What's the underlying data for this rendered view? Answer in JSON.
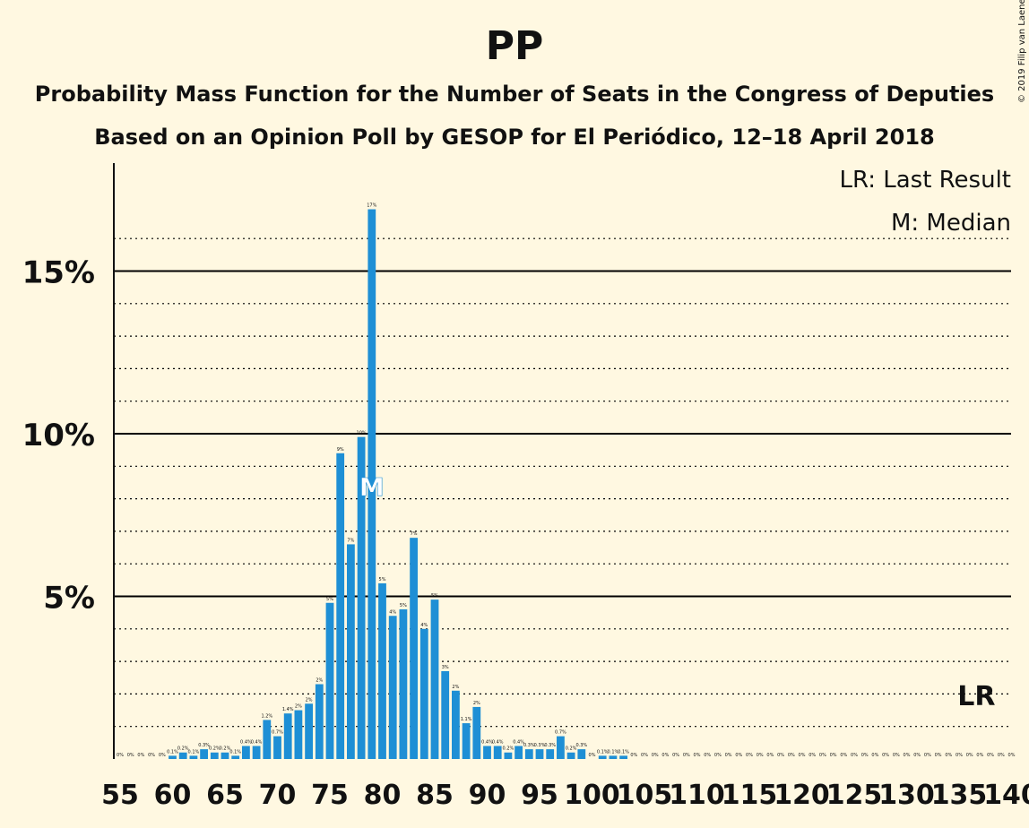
{
  "chart_data": {
    "type": "bar",
    "title": "PP",
    "subtitle": "Probability Mass Function for the Number of Seats in the Congress of Deputies",
    "subtitle2": "Based on an Opinion Poll by GESOP for El Periódico, 12–18 April 2018",
    "copyright": "© 2019 Filip van Laenen",
    "legend": [
      "LR: Last Result",
      "M: Median"
    ],
    "y_tick_labels": [
      "5%",
      "10%",
      "15%"
    ],
    "y_ticks": [
      5,
      10,
      15
    ],
    "ylim": [
      0,
      18
    ],
    "x_start": 55,
    "x_end": 140,
    "x_tick_labels": [
      "55",
      "60",
      "65",
      "70",
      "75",
      "80",
      "85",
      "90",
      "95",
      "100",
      "105",
      "110",
      "115",
      "120",
      "125",
      "130",
      "135",
      "140"
    ],
    "median_seat": 79,
    "last_result_seat": 137,
    "median_marker": "M",
    "last_result_marker": "LR",
    "bar_color": "#1E8FD5",
    "grid_color": "#000000",
    "values": [
      0.0,
      0.0,
      0.0,
      0.0,
      0.0,
      0.1,
      0.2,
      0.1,
      0.3,
      0.2,
      0.2,
      0.1,
      0.4,
      0.4,
      1.2,
      0.7,
      1.4,
      1.5,
      1.7,
      2.3,
      4.8,
      9.4,
      6.6,
      9.9,
      16.9,
      5.4,
      4.4,
      4.6,
      6.8,
      4.0,
      4.9,
      2.7,
      2.1,
      1.1,
      1.6,
      0.4,
      0.4,
      0.2,
      0.4,
      0.3,
      0.3,
      0.3,
      0.7,
      0.2,
      0.3,
      0.0,
      0.1,
      0.1,
      0.1,
      0.0,
      0.0,
      0.0,
      0.0,
      0.0,
      0.0,
      0.0,
      0.0,
      0.0,
      0.0,
      0.0,
      0.0,
      0.0,
      0.0,
      0.0,
      0.0,
      0.0,
      0.0,
      0.0,
      0.0,
      0.0,
      0.0,
      0.0,
      0.0,
      0.0,
      0.0,
      0.0,
      0.0,
      0.0,
      0.0,
      0.0,
      0.0,
      0.0,
      0.0,
      0.0,
      0.0,
      0.0
    ],
    "value_labels": [
      "0%",
      "0%",
      "0%",
      "0%",
      "0%",
      "0.1%",
      "0.2%",
      "0.1%",
      "0.3%",
      "0.2%",
      "0.2%",
      "0.1%",
      "0.4%",
      "0.4%",
      "1.2%",
      "0.7%",
      "1.4%",
      "2%",
      "2%",
      "2%",
      "5%",
      "9%",
      "7%",
      "10%",
      "17%",
      "5%",
      "4%",
      "5%",
      "7%",
      "4%",
      "5%",
      "3%",
      "2%",
      "1.1%",
      "2%",
      "0.4%",
      "0.4%",
      "0.2%",
      "0.4%",
      "0.3%",
      "0.3%",
      "0.3%",
      "0.7%",
      "0.2%",
      "0.3%",
      "0%",
      "0.1%",
      "0.1%",
      "0.1%",
      "0%",
      "0%",
      "0%",
      "0%",
      "0%",
      "0%",
      "0%",
      "0%",
      "0%",
      "0%",
      "0%",
      "0%",
      "0%",
      "0%",
      "0%",
      "0%",
      "0%",
      "0%",
      "0%",
      "0%",
      "0%",
      "0%",
      "0%",
      "0%",
      "0%",
      "0%",
      "0%",
      "0%",
      "0%",
      "0%",
      "0%",
      "0%",
      "0%",
      "0%",
      "0%",
      "0%",
      "0%"
    ]
  }
}
